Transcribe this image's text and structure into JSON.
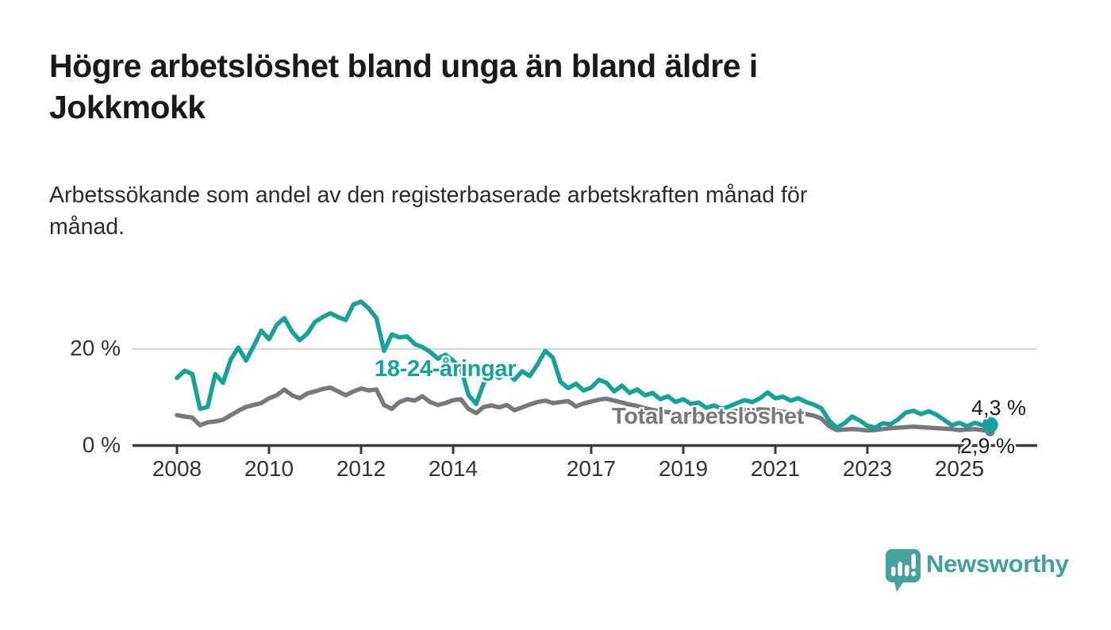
{
  "header": {
    "title": "Högre arbetslöshet bland unga än bland äldre i Jokkmokk",
    "title_lines": [
      "Högre arbetslöshet bland unga än bland äldre i",
      "Jokkmokk"
    ],
    "subtitle": "Arbetssökande som andel av den registerbaserade arbetskraften månad för månad.",
    "subtitle_lines": [
      "Arbetssökande som andel av den registerbaserade arbetskraften månad för",
      "månad."
    ]
  },
  "chart_data": {
    "type": "line",
    "title": "Högre arbetslöshet bland unga än bland äldre i Jokkmokk",
    "xlabel": "",
    "ylabel": "Arbetssökande som andel av den registerbaserade arbetskraften",
    "x_axis": {
      "ticks": [
        2008,
        2010,
        2012,
        2014,
        2017,
        2019,
        2021,
        2023,
        2025
      ],
      "tick_labels": [
        "2008",
        "2010",
        "2012",
        "2014",
        "2017",
        "2019",
        "2021",
        "2023",
        "2025"
      ],
      "range": [
        2007.05,
        2026.7
      ]
    },
    "y_axis": {
      "ticks": [
        0,
        20
      ],
      "tick_labels": [
        "0 %",
        "20 %"
      ],
      "range": [
        0,
        31.5
      ],
      "gridlines": [
        20
      ]
    },
    "legend_position": "inline-labels",
    "grid": "horizontal-only",
    "x": [
      2008,
      2008.167,
      2008.333,
      2008.5,
      2008.667,
      2008.833,
      2009,
      2009.167,
      2009.333,
      2009.5,
      2009.667,
      2009.833,
      2010,
      2010.167,
      2010.333,
      2010.5,
      2010.667,
      2010.833,
      2011,
      2011.167,
      2011.333,
      2011.5,
      2011.667,
      2011.833,
      2012,
      2012.167,
      2012.333,
      2012.5,
      2012.667,
      2012.833,
      2013,
      2013.167,
      2013.333,
      2013.5,
      2013.667,
      2013.833,
      2014,
      2014.167,
      2014.333,
      2014.5,
      2014.667,
      2014.833,
      2015,
      2015.167,
      2015.333,
      2015.5,
      2015.667,
      2015.833,
      2016,
      2016.167,
      2016.333,
      2016.5,
      2016.667,
      2016.833,
      2017,
      2017.167,
      2017.333,
      2017.5,
      2017.667,
      2017.833,
      2018,
      2018.167,
      2018.333,
      2018.5,
      2018.667,
      2018.833,
      2019,
      2019.167,
      2019.333,
      2019.5,
      2019.667,
      2019.833,
      2020,
      2020.167,
      2020.333,
      2020.5,
      2020.667,
      2020.833,
      2021,
      2021.167,
      2021.333,
      2021.5,
      2021.667,
      2021.833,
      2022,
      2022.167,
      2022.333,
      2022.5,
      2022.667,
      2022.833,
      2023,
      2023.167,
      2023.333,
      2023.5,
      2023.667,
      2023.833,
      2024,
      2024.167,
      2024.333,
      2024.5,
      2024.667,
      2024.833,
      2025,
      2025.167,
      2025.333,
      2025.5,
      2025.667
    ],
    "series": [
      {
        "name": "18-24-åringar",
        "color": "#16a294",
        "end_label": "4,3 %",
        "end_value": 4.3,
        "end_dot": true,
        "values": [
          14.0,
          15.5,
          14.8,
          7.6,
          8.0,
          14.8,
          13.0,
          17.8,
          20.3,
          17.6,
          20.6,
          23.8,
          22.0,
          25.0,
          26.4,
          23.6,
          21.8,
          23.2,
          25.6,
          26.6,
          27.4,
          26.6,
          26.0,
          29.2,
          29.8,
          28.4,
          26.4,
          19.6,
          23.0,
          22.4,
          22.6,
          21.0,
          20.4,
          19.4,
          18.0,
          18.8,
          17.6,
          16.0,
          10.5,
          8.6,
          13.0,
          15.0,
          14.0,
          15.2,
          13.6,
          15.4,
          14.4,
          16.8,
          19.6,
          18.2,
          13.2,
          11.9,
          12.8,
          11.4,
          12.0,
          13.6,
          13.0,
          11.2,
          12.4,
          10.9,
          11.6,
          10.4,
          10.9,
          9.6,
          10.2,
          9.0,
          9.6,
          8.6,
          8.9,
          7.8,
          8.3,
          7.6,
          8.1,
          8.8,
          9.4,
          9.0,
          9.8,
          11.0,
          9.8,
          10.1,
          9.3,
          9.8,
          9.0,
          8.5,
          7.7,
          5.2,
          3.7,
          4.6,
          6.0,
          5.2,
          4.1,
          3.7,
          4.6,
          4.4,
          5.4,
          6.8,
          7.2,
          6.5,
          7.1,
          6.4,
          5.3,
          4.2,
          4.7,
          4.0,
          4.7,
          4.2,
          4.3
        ]
      },
      {
        "name": "Total arbetslöshet",
        "color": "#77787c",
        "end_label": "2,9 %",
        "end_value": 2.9,
        "end_dot": true,
        "values": [
          6.3,
          6.0,
          5.8,
          4.2,
          4.8,
          5.0,
          5.3,
          6.3,
          7.2,
          8.0,
          8.4,
          8.8,
          9.8,
          10.4,
          11.6,
          10.4,
          9.8,
          10.8,
          11.2,
          11.7,
          12.0,
          11.2,
          10.4,
          11.2,
          11.8,
          11.4,
          11.6,
          8.4,
          7.6,
          9.0,
          9.6,
          9.3,
          10.2,
          9.0,
          8.4,
          8.8,
          9.4,
          9.6,
          7.6,
          6.7,
          8.0,
          8.3,
          7.9,
          8.4,
          7.3,
          7.9,
          8.5,
          9.0,
          9.3,
          8.8,
          9.0,
          9.2,
          8.1,
          8.7,
          9.1,
          9.5,
          9.7,
          9.3,
          8.9,
          8.5,
          8.2,
          7.7,
          7.4,
          7.1,
          6.9,
          6.7,
          6.6,
          6.4,
          6.3,
          6.5,
          6.4,
          6.6,
          6.9,
          7.2,
          7.4,
          7.3,
          7.5,
          7.4,
          7.2,
          7.0,
          6.8,
          6.8,
          6.5,
          6.2,
          5.6,
          4.0,
          3.2,
          3.3,
          3.4,
          3.3,
          3.1,
          3.2,
          3.4,
          3.6,
          3.7,
          3.8,
          3.9,
          3.8,
          3.7,
          3.6,
          3.5,
          3.4,
          3.2,
          3.3,
          3.4,
          3.2,
          2.9
        ]
      }
    ]
  },
  "footer": {
    "brand": "Newsworthy",
    "logo_icon": "speech-bubble-bar-chart-icon",
    "logo_color": "#47a29c"
  },
  "colors": {
    "background": "#ffffff",
    "title_text": "#1a1a1a",
    "axis_text": "#333333",
    "axis_line": "#3b3b3b",
    "gridline": "#d4d4d4",
    "youth_series": "#16a294",
    "total_series": "#77787c",
    "brand_teal": "#43a19b"
  }
}
